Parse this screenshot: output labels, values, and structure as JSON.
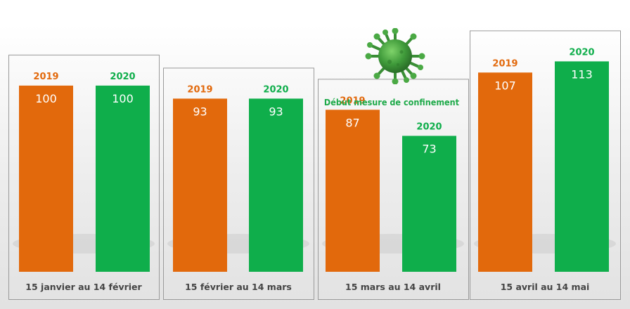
{
  "chart_data": {
    "type": "bar",
    "categories": [
      "15 janvier au 14 février",
      "15 février au 14 mars",
      "15 mars au 14 avril",
      "15 avril au 14 mai"
    ],
    "series": [
      {
        "name": "2019",
        "values": [
          100,
          93,
          87,
          107
        ]
      },
      {
        "name": "2020",
        "values": [
          100,
          93,
          73,
          113
        ]
      }
    ],
    "title": "",
    "xlabel": "",
    "ylabel": "",
    "annotation": "Début mesure de confinement",
    "grid": false,
    "legend": "none"
  },
  "colors": {
    "2019": "#e2690c",
    "2020": "#0fae4b",
    "panel_border": "#9a9a9a",
    "label_text": "#444444"
  },
  "icons": [
    "virus-icon"
  ]
}
